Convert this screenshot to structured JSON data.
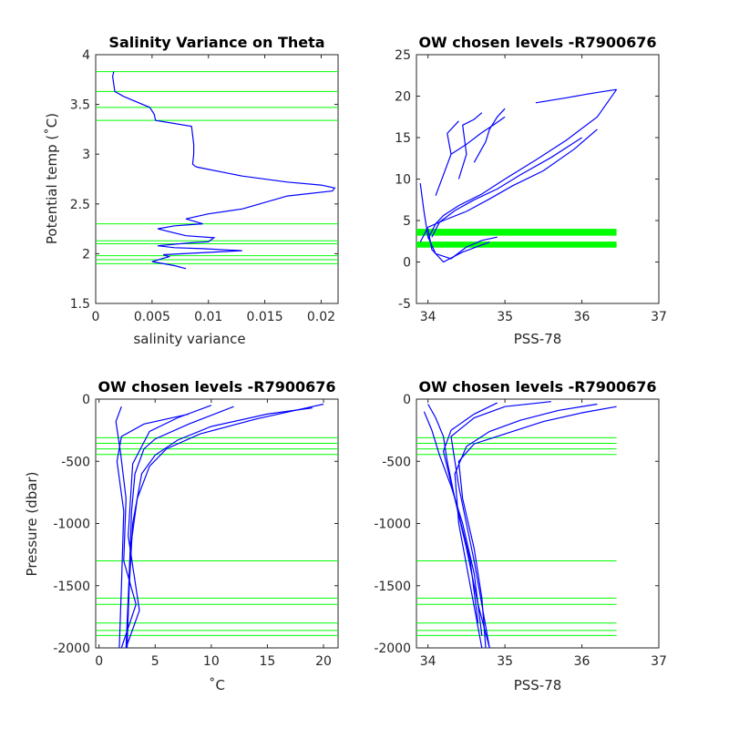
{
  "chart_data": [
    {
      "type": "line",
      "title": "Salinity Variance on Theta",
      "xlabel": "salinity variance",
      "ylabel": "Potential temp (˚C)",
      "xlim": [
        0,
        0.0215
      ],
      "ylim": [
        1.5,
        4
      ],
      "xticks": [
        0,
        0.005,
        0.01,
        0.015,
        0.02
      ],
      "xtick_labels": [
        "0",
        "0.005",
        "0.01",
        "0.015",
        "0.02"
      ],
      "yticks": [
        1.5,
        2,
        2.5,
        3,
        3.5,
        4
      ],
      "ytick_labels": [
        "1.5",
        "2",
        "2.5",
        "3",
        "3.5",
        "4"
      ],
      "series": [
        {
          "color": "#0000ff",
          "x": [
            0.0016,
            0.0015,
            0.0017,
            0.0025,
            0.0048,
            0.0052,
            0.0053,
            0.0085,
            0.0087,
            0.0087,
            0.0086,
            0.0088,
            0.009,
            0.013,
            0.017,
            0.02,
            0.0212,
            0.021,
            0.017,
            0.013,
            0.01,
            0.008,
            0.0095,
            0.007,
            0.0055,
            0.008,
            0.0105,
            0.01,
            0.0085,
            0.0055,
            0.007,
            0.0095,
            0.013,
            0.006,
            0.0065,
            0.005,
            0.007,
            0.008
          ],
          "y": [
            3.83,
            3.78,
            3.63,
            3.58,
            3.47,
            3.4,
            3.34,
            3.28,
            3.1,
            3.0,
            2.9,
            2.88,
            2.87,
            2.78,
            2.72,
            2.69,
            2.66,
            2.63,
            2.58,
            2.45,
            2.4,
            2.35,
            2.3,
            2.28,
            2.25,
            2.18,
            2.16,
            2.12,
            2.11,
            2.08,
            2.06,
            2.05,
            2.03,
            1.99,
            1.97,
            1.92,
            1.88,
            1.85
          ]
        }
      ],
      "hlines": {
        "color": "#00ff00",
        "y": [
          3.83,
          3.63,
          3.47,
          3.34,
          2.3,
          2.13,
          2.1,
          1.98,
          1.94,
          1.9
        ]
      }
    },
    {
      "type": "line",
      "title": "OW chosen levels -R7900676",
      "xlabel": "PSS-78",
      "ylabel": "",
      "xlim": [
        33.85,
        37
      ],
      "ylim": [
        -5,
        25
      ],
      "xticks": [
        34,
        35,
        36,
        37
      ],
      "xtick_labels": [
        "34",
        "35",
        "36",
        "37"
      ],
      "yticks": [
        -5,
        0,
        5,
        10,
        15,
        20,
        25
      ],
      "ytick_labels": [
        "-5",
        "0",
        "5",
        "10",
        "15",
        "20",
        "25"
      ],
      "series": [
        {
          "name": "",
          "color": "#0000ff",
          "x": [
            34.0,
            34.1,
            34.2,
            34.4,
            34.7,
            35.0,
            35.4,
            35.8,
            36.2,
            36.45
          ],
          "y": [
            2.8,
            4.6,
            5.6,
            6.8,
            8.2,
            10.0,
            12.3,
            14.7,
            17.5,
            20.8
          ]
        },
        {
          "name": "",
          "color": "#0000ff",
          "x": [
            33.9,
            34.0,
            34.2,
            34.5,
            34.8,
            35.1,
            35.5,
            35.9,
            36.2
          ],
          "y": [
            2.4,
            4.2,
            5.0,
            6.1,
            7.6,
            9.2,
            11.0,
            13.6,
            16.0
          ]
        },
        {
          "name": "",
          "color": "#0000ff",
          "x": [
            34.05,
            34.15,
            34.35,
            34.6,
            34.9,
            35.2,
            35.6,
            36.0
          ],
          "y": [
            3.0,
            4.8,
            6.2,
            7.5,
            8.8,
            10.5,
            12.6,
            15.0
          ]
        },
        {
          "name": "",
          "color": "#0000ff",
          "x": [
            35.4,
            35.8,
            36.1,
            36.45
          ],
          "y": [
            19.2,
            19.8,
            20.3,
            20.8
          ]
        },
        {
          "name": "",
          "color": "#0000ff",
          "x": [
            34.4,
            34.5,
            34.45,
            34.6,
            34.7
          ],
          "y": [
            10.0,
            13.0,
            16.5,
            17.2,
            18.0
          ]
        },
        {
          "name": "",
          "color": "#0000ff",
          "x": [
            34.6,
            34.75,
            34.8,
            34.9,
            35.0
          ],
          "y": [
            12.0,
            14.5,
            16.0,
            17.5,
            18.5
          ]
        },
        {
          "name": "",
          "color": "#0000ff",
          "x": [
            34.1,
            34.2,
            34.3,
            34.25,
            34.4
          ],
          "y": [
            8.0,
            10.5,
            13.0,
            15.5,
            17.0
          ]
        },
        {
          "name": "",
          "color": "#0000ff",
          "x": [
            33.9,
            33.95,
            34.0,
            34.1,
            34.3,
            34.5,
            34.7,
            34.9
          ],
          "y": [
            9.5,
            6.0,
            3.0,
            1.0,
            0.4,
            1.8,
            2.6,
            3.0
          ]
        },
        {
          "name": "",
          "color": "#0000ff",
          "x": [
            34.0,
            34.05,
            34.2,
            34.45,
            34.8
          ],
          "y": [
            4.0,
            1.5,
            0.0,
            1.2,
            2.4
          ]
        },
        {
          "name": "",
          "color": "#0000ff",
          "x": [
            34.3,
            34.5,
            34.7,
            34.85,
            35.0
          ],
          "y": [
            13.0,
            14.2,
            15.6,
            16.5,
            17.5
          ]
        }
      ],
      "hlines": {
        "color": "#00ff00",
        "y": [
          3.83,
          3.63,
          3.47,
          3.34,
          2.3,
          2.13,
          2.1,
          1.98,
          1.94,
          1.9
        ]
      }
    },
    {
      "type": "line",
      "title": "OW chosen levels -R7900676",
      "xlabel": "˚C",
      "ylabel": "Pressure (dbar)",
      "xlim": [
        -0.3,
        21.3
      ],
      "ylim": [
        -2000,
        0
      ],
      "xticks": [
        0,
        5,
        10,
        15,
        20
      ],
      "xtick_labels": [
        "0",
        "5",
        "10",
        "15",
        "20"
      ],
      "yticks": [
        -2000,
        -1500,
        -1000,
        -500,
        0
      ],
      "ytick_labels": [
        "-2000",
        "-1500",
        "-1000",
        "-500",
        "0"
      ],
      "series": [
        {
          "name": "",
          "color": "#0000ff",
          "x": [
            20.0,
            18.0,
            14.0,
            9.0,
            6.0,
            4.5,
            3.4,
            2.8,
            2.6,
            2.4
          ],
          "y": [
            -40,
            -80,
            -160,
            -280,
            -400,
            -540,
            -800,
            -1200,
            -1600,
            -2000
          ]
        },
        {
          "name": "",
          "color": "#0000ff",
          "x": [
            19.0,
            15.0,
            10.0,
            7.0,
            5.0,
            3.8,
            3.0,
            2.7,
            2.5
          ],
          "y": [
            -70,
            -120,
            -220,
            -330,
            -450,
            -600,
            -1000,
            -1500,
            -1950
          ]
        },
        {
          "name": "",
          "color": "#0000ff",
          "x": [
            12.0,
            8.0,
            5.0,
            4.0,
            3.2,
            2.9,
            2.7,
            2.5
          ],
          "y": [
            -60,
            -200,
            -320,
            -400,
            -600,
            -900,
            -1400,
            -2000
          ]
        },
        {
          "name": "",
          "color": "#0000ff",
          "x": [
            8.0,
            4.0,
            2.0,
            1.6,
            2.2,
            2.0,
            1.8
          ],
          "y": [
            -120,
            -200,
            -300,
            -500,
            -900,
            -1500,
            -2000
          ]
        },
        {
          "name": "",
          "color": "#0000ff",
          "x": [
            2.0,
            1.5,
            1.9,
            2.4,
            2.2,
            3.3,
            2.0
          ],
          "y": [
            -60,
            -180,
            -420,
            -800,
            -1300,
            -1650,
            -2000
          ]
        },
        {
          "name": "",
          "color": "#0000ff",
          "x": [
            10.0,
            7.0,
            4.5,
            3.0,
            2.6,
            3.6,
            2.4
          ],
          "y": [
            -50,
            -150,
            -260,
            -520,
            -1100,
            -1700,
            -2000
          ]
        }
      ],
      "hlines": {
        "color": "#00ff00",
        "y": [
          -310,
          -355,
          -400,
          -445,
          -1300,
          -1600,
          -1650,
          -1800,
          -1860,
          -1900
        ]
      }
    },
    {
      "type": "line",
      "title": "OW chosen levels -R7900676",
      "xlabel": "PSS-78",
      "ylabel": "",
      "xlim": [
        33.85,
        37
      ],
      "ylim": [
        -2000,
        0
      ],
      "xticks": [
        34,
        35,
        36,
        37
      ],
      "xtick_labels": [
        "34",
        "35",
        "36",
        "37"
      ],
      "yticks": [
        -2000,
        -1500,
        -1000,
        -500,
        0
      ],
      "ytick_labels": [
        "-2000",
        "-1500",
        "-1000",
        "-500",
        "0"
      ],
      "series": [
        {
          "name": "",
          "color": "#0000ff",
          "x": [
            36.45,
            36.0,
            35.5,
            35.0,
            34.6,
            34.4,
            34.45,
            34.6,
            34.7,
            34.75
          ],
          "y": [
            -60,
            -110,
            -180,
            -280,
            -360,
            -500,
            -800,
            -1200,
            -1600,
            -2000
          ]
        },
        {
          "name": "",
          "color": "#0000ff",
          "x": [
            36.2,
            35.7,
            35.2,
            34.8,
            34.5,
            34.35,
            34.4,
            34.55,
            34.7
          ],
          "y": [
            -40,
            -90,
            -170,
            -260,
            -380,
            -600,
            -1000,
            -1500,
            -2000
          ]
        },
        {
          "name": "",
          "color": "#0000ff",
          "x": [
            34.0,
            34.1,
            34.2,
            34.25,
            34.35,
            34.5,
            34.65,
            34.8
          ],
          "y": [
            -40,
            -150,
            -300,
            -500,
            -800,
            -1200,
            -1650,
            -2000
          ]
        },
        {
          "name": "",
          "color": "#0000ff",
          "x": [
            33.95,
            34.05,
            34.15,
            34.3,
            34.45,
            34.6,
            34.7
          ],
          "y": [
            -100,
            -250,
            -450,
            -700,
            -1000,
            -1400,
            -1900
          ]
        },
        {
          "name": "",
          "color": "#0000ff",
          "x": [
            34.9,
            34.6,
            34.3,
            34.2,
            34.35,
            34.55,
            34.65
          ],
          "y": [
            -30,
            -120,
            -250,
            -420,
            -800,
            -1300,
            -1800
          ]
        },
        {
          "name": "",
          "color": "#0000ff",
          "x": [
            35.6,
            35.0,
            34.6,
            34.3,
            34.4,
            34.6,
            34.8
          ],
          "y": [
            -20,
            -60,
            -150,
            -300,
            -700,
            -1300,
            -2000
          ]
        }
      ],
      "hlines": {
        "color": "#00ff00",
        "y": [
          -310,
          -355,
          -400,
          -445,
          -1300,
          -1600,
          -1650,
          -1800,
          -1860,
          -1900
        ]
      }
    }
  ]
}
